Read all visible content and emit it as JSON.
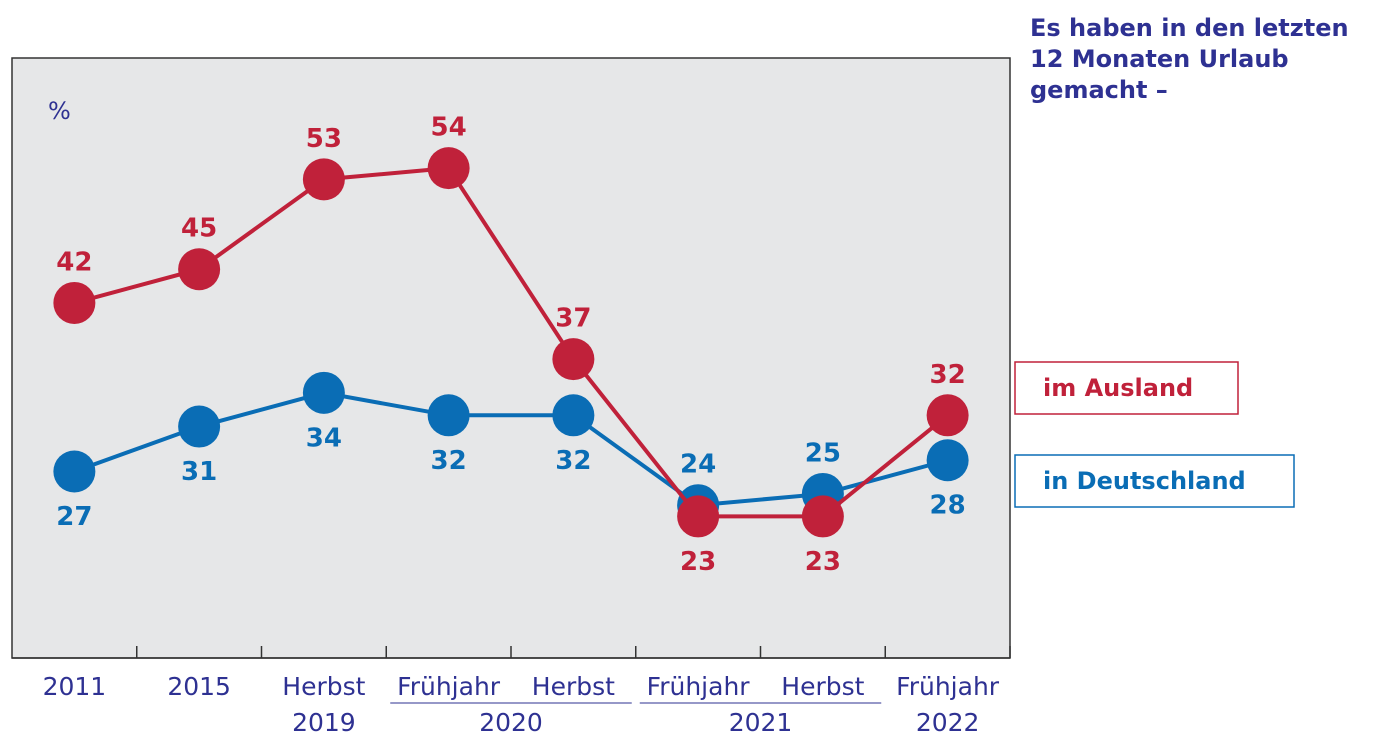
{
  "chart_data": {
    "type": "line",
    "title_lines": [
      "Es haben in den letzten",
      "12 Monaten Urlaub",
      "gemacht –"
    ],
    "y_label": "%",
    "categories": [
      "2011",
      "2015",
      "Herbst",
      "Frühjahr",
      "Herbst",
      "Frühjahr",
      "Herbst",
      "Frühjahr"
    ],
    "year_groups": [
      {
        "label": "2019",
        "categories": [
          2
        ]
      },
      {
        "label": "2020",
        "categories": [
          3,
          4
        ]
      },
      {
        "label": "2021",
        "categories": [
          5,
          6
        ]
      },
      {
        "label": "2022",
        "categories": [
          7
        ]
      }
    ],
    "series": [
      {
        "name": "in Deutschland",
        "color": "#0a6db5",
        "values": [
          27,
          31,
          34,
          32,
          32,
          24,
          25,
          28
        ]
      },
      {
        "name": "im Ausland",
        "color": "#c0213a",
        "values": [
          42,
          45,
          53,
          54,
          37,
          23,
          23,
          32
        ]
      }
    ],
    "ylim": [
      10.4,
      63.8
    ],
    "grid": false
  }
}
